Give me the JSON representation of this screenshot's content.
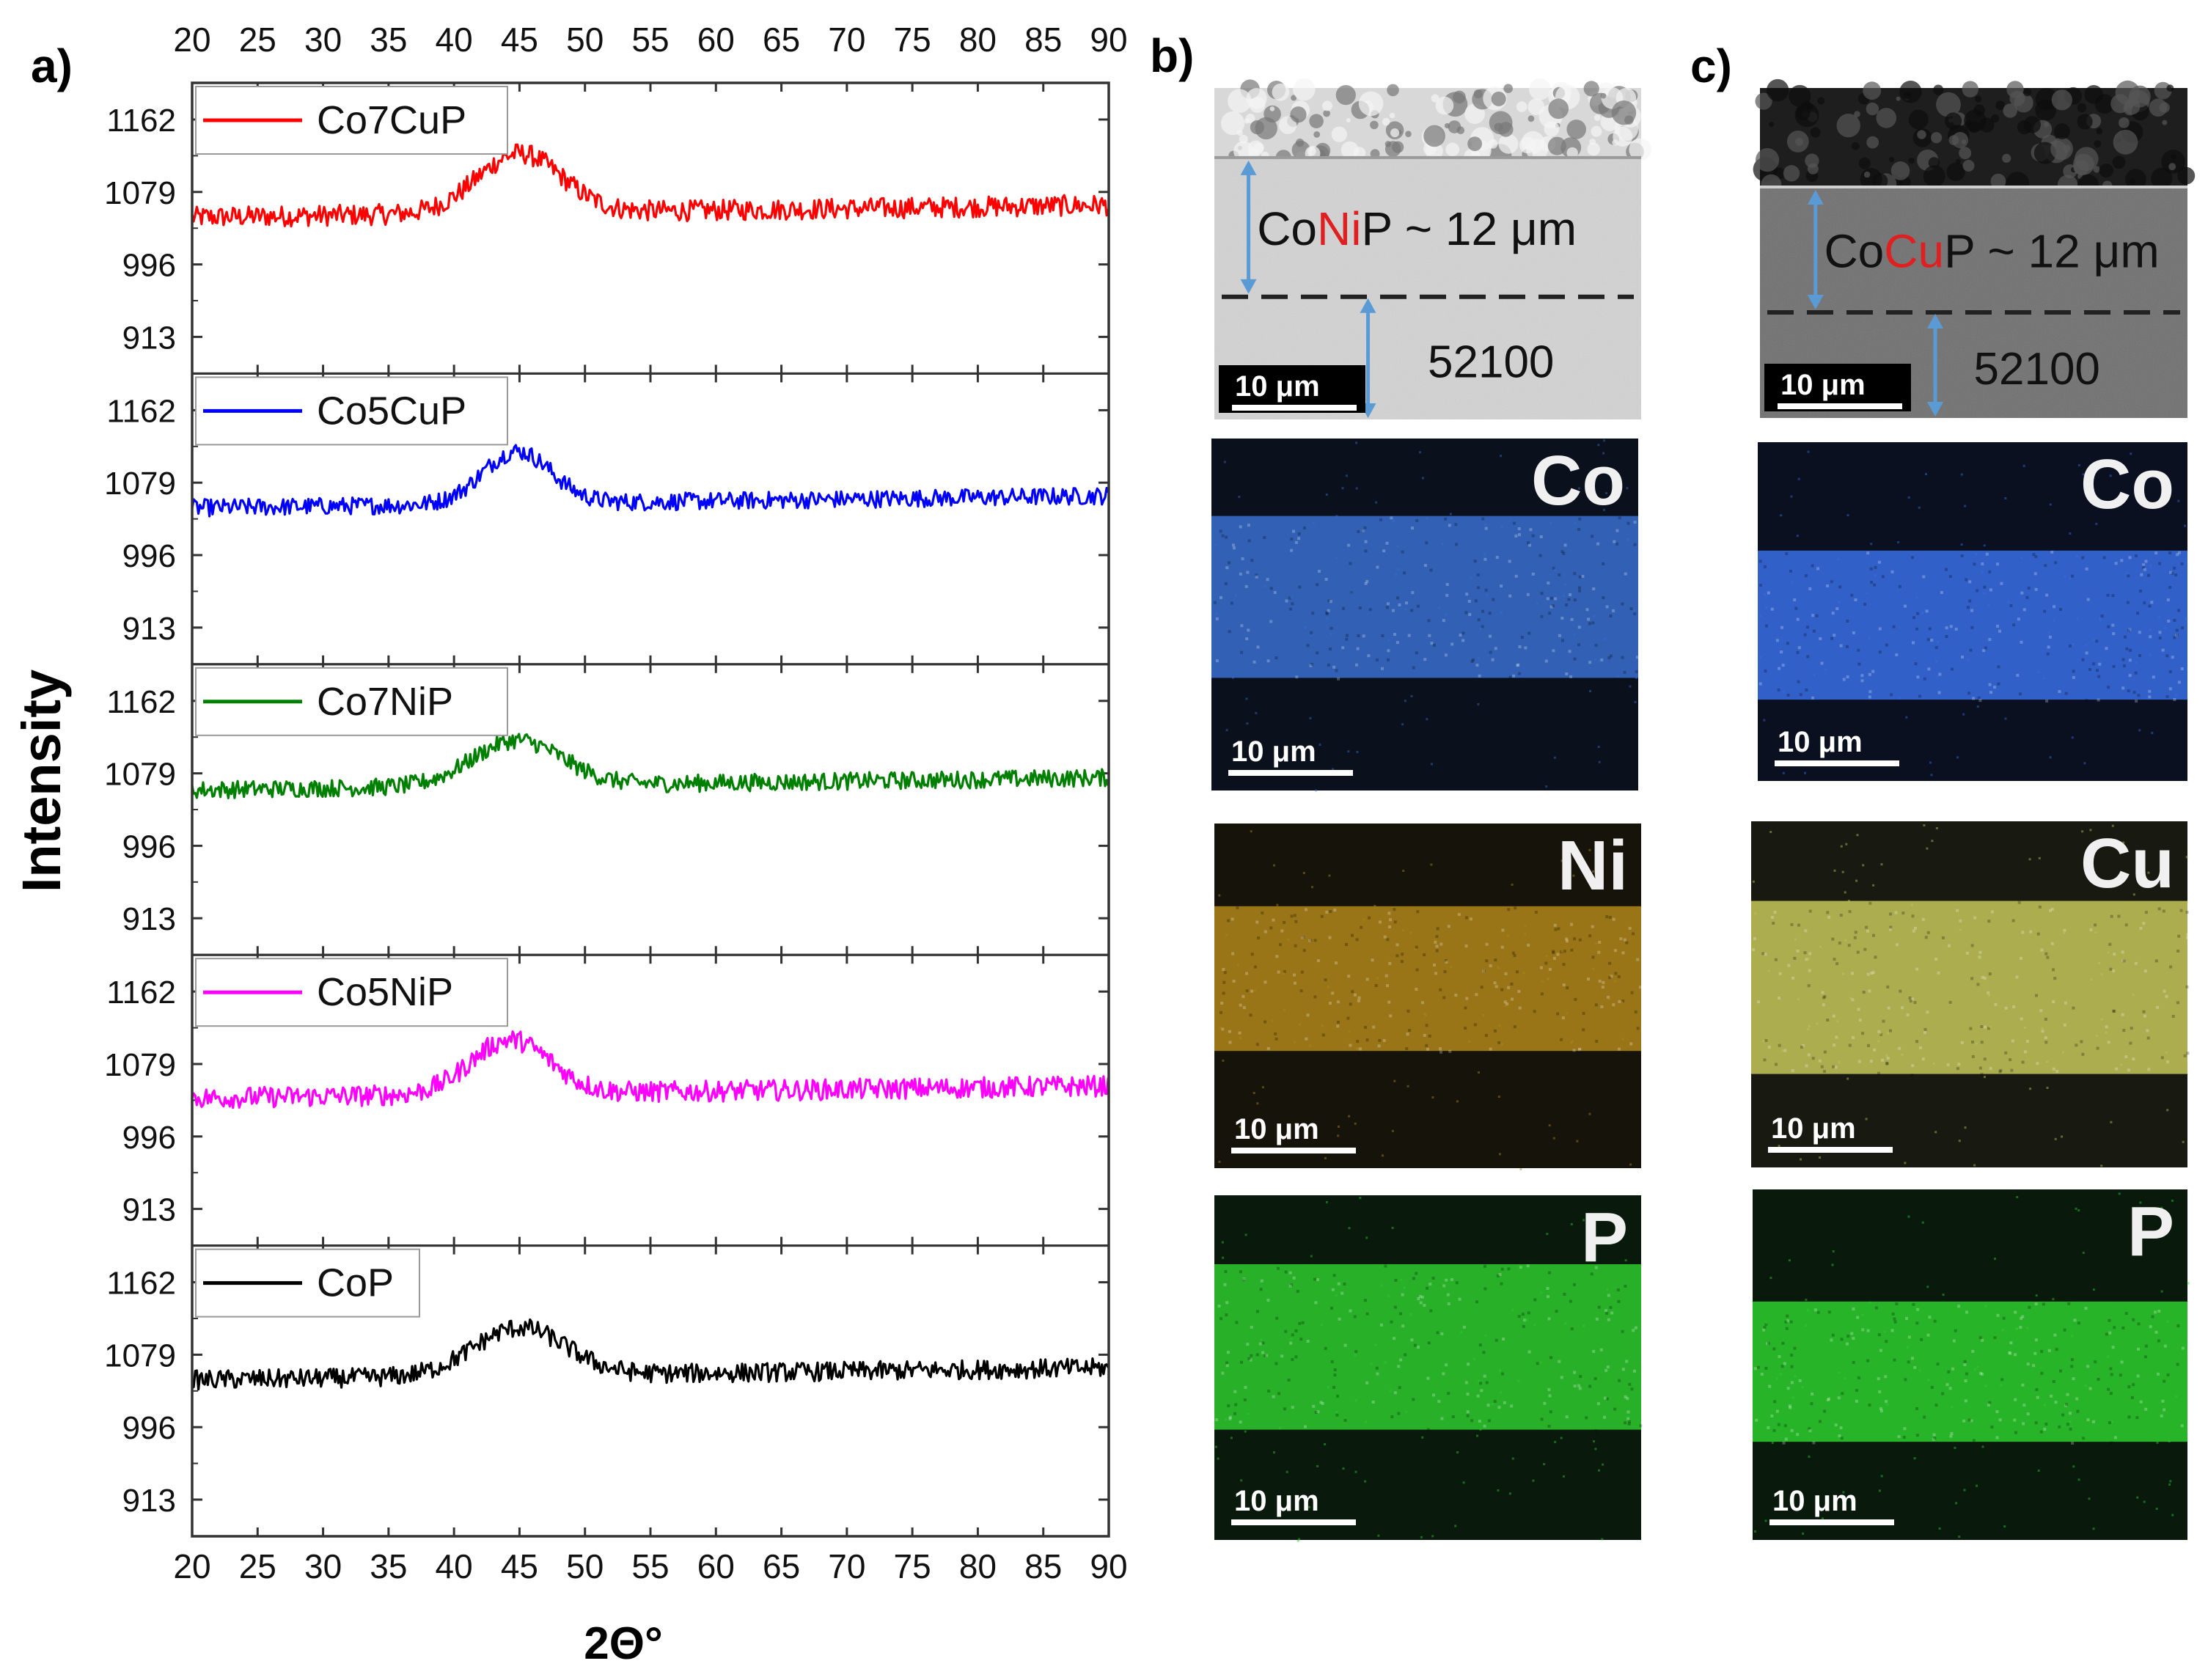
{
  "panels": {
    "a": "a)",
    "b": "b)",
    "c": "c)"
  },
  "chart_data": {
    "type": "line",
    "title": "",
    "xlabel": "2Θ°",
    "ylabel": "Intensity",
    "xlim": [
      20,
      90
    ],
    "ylim": [
      871,
      1204
    ],
    "xticks": [
      20,
      25,
      30,
      35,
      40,
      45,
      50,
      55,
      60,
      65,
      70,
      75,
      80,
      85,
      90
    ],
    "yticks": [
      913,
      996,
      1079,
      1162
    ],
    "legend_location": "top-left",
    "series": [
      {
        "name": "Co7CuP",
        "color": "#ff0000",
        "baseline": 1050,
        "peak_center": 45,
        "peak_height": 68,
        "peak_width": 3.2,
        "noise": 12
      },
      {
        "name": "Co5CuP",
        "color": "#0000ff",
        "baseline": 1050,
        "peak_center": 44.8,
        "peak_height": 60,
        "peak_width": 2.6,
        "noise": 10
      },
      {
        "name": "Co7NiP",
        "color": "#008000",
        "baseline": 1060,
        "peak_center": 44.8,
        "peak_height": 52,
        "peak_width": 3.4,
        "noise": 10
      },
      {
        "name": "Co5NiP",
        "color": "#ff00ff",
        "baseline": 1040,
        "peak_center": 44.3,
        "peak_height": 62,
        "peak_width": 3.0,
        "noise": 12
      },
      {
        "name": "CoP",
        "color": "#000000",
        "baseline": 1050,
        "peak_center": 45,
        "peak_height": 55,
        "peak_width": 3.5,
        "noise": 11
      }
    ]
  },
  "micrographs": {
    "b": {
      "sem": {
        "label_prefix": "Co",
        "label_highlight": "Ni",
        "label_suffix": "P ~ 12 μm",
        "substrate": "52100",
        "scale": "10 μm"
      },
      "maps": [
        {
          "element": "Co",
          "scale": "10 μm",
          "color": "#3a6fd0"
        },
        {
          "element": "Ni",
          "scale": "10 μm",
          "color": "#b0871a"
        },
        {
          "element": "P",
          "scale": "10 μm",
          "color": "#2ecc2e"
        }
      ]
    },
    "c": {
      "sem": {
        "label_prefix": "Co",
        "label_highlight": "Cu",
        "label_suffix": "P ~ 12 μm",
        "substrate": "52100",
        "scale": "10 μm"
      },
      "maps": [
        {
          "element": "Co",
          "scale": "10 μm",
          "color": "#3a6fe8"
        },
        {
          "element": "Cu",
          "scale": "10 μm",
          "color": "#c6c85a"
        },
        {
          "element": "P",
          "scale": "10 μm",
          "color": "#2ed02e"
        }
      ]
    },
    "highlight_color": "#e02020",
    "arrow_color": "#5b9bd5"
  }
}
